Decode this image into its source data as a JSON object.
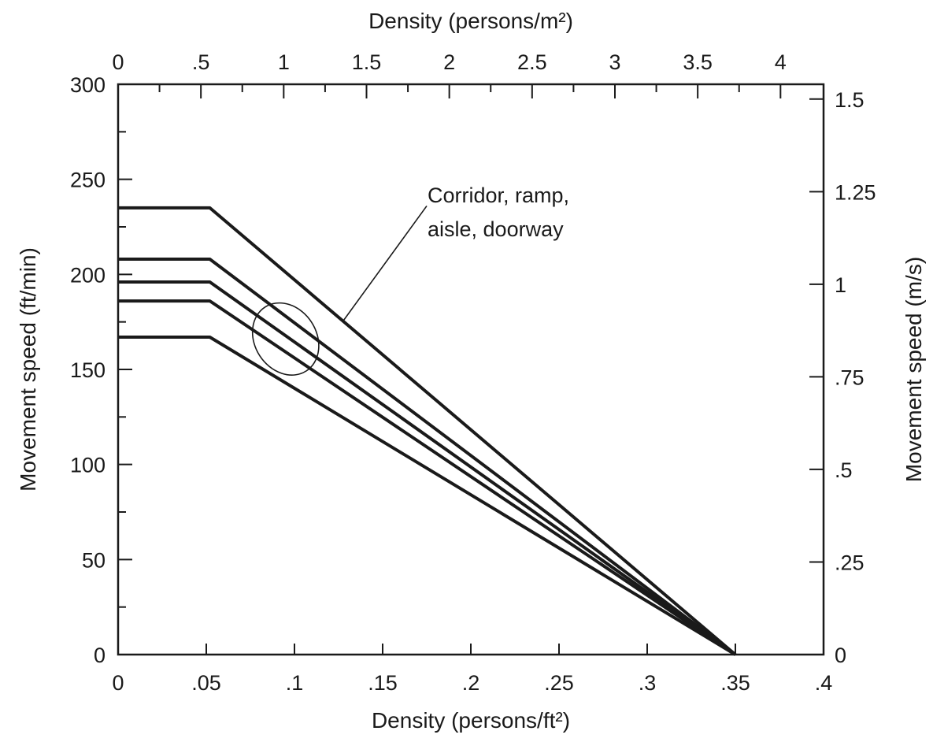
{
  "chart_data": {
    "type": "line",
    "title": "",
    "xlabel_bottom": "Density (persons/ft²)",
    "xlabel_top": "Density (persons/m²)",
    "ylabel_left": "Movement speed (ft/min)",
    "ylabel_right": "Movement speed (m/s)",
    "xlim": [
      0,
      0.4
    ],
    "ylim": [
      0,
      300
    ],
    "grid": false,
    "legend": "none",
    "bottom_ticks": [
      {
        "value": 0,
        "label": "0"
      },
      {
        "value": 0.05,
        "label": ".05"
      },
      {
        "value": 0.1,
        "label": ".1"
      },
      {
        "value": 0.15,
        "label": ".15"
      },
      {
        "value": 0.2,
        "label": ".2"
      },
      {
        "value": 0.25,
        "label": ".25"
      },
      {
        "value": 0.3,
        "label": ".3"
      },
      {
        "value": 0.35,
        "label": ".35"
      },
      {
        "value": 0.4,
        "label": ".4"
      }
    ],
    "top_ticks": [
      {
        "value": 0,
        "label": "0"
      },
      {
        "value": 0.5,
        "label": ".5"
      },
      {
        "value": 1,
        "label": "1"
      },
      {
        "value": 1.5,
        "label": "1.5"
      },
      {
        "value": 2,
        "label": "2"
      },
      {
        "value": 2.5,
        "label": "2.5"
      },
      {
        "value": 3,
        "label": "3"
      },
      {
        "value": 3.5,
        "label": "3.5"
      },
      {
        "value": 4,
        "label": "4"
      }
    ],
    "left_ticks": [
      {
        "value": 0,
        "label": "0"
      },
      {
        "value": 50,
        "label": "50"
      },
      {
        "value": 100,
        "label": "100"
      },
      {
        "value": 150,
        "label": "150"
      },
      {
        "value": 200,
        "label": "200"
      },
      {
        "value": 250,
        "label": "250"
      },
      {
        "value": 300,
        "label": "300"
      }
    ],
    "right_ticks": [
      {
        "value": 0,
        "label": "0"
      },
      {
        "value": 0.25,
        "label": ".25"
      },
      {
        "value": 0.5,
        "label": ".5"
      },
      {
        "value": 0.75,
        "label": ".75"
      },
      {
        "value": 1,
        "label": "1"
      },
      {
        "value": 1.25,
        "label": "1.25"
      },
      {
        "value": 1.5,
        "label": "1.5"
      }
    ],
    "series": [
      {
        "points": [
          [
            0,
            235
          ],
          [
            0.052,
            235
          ],
          [
            0.35,
            0
          ]
        ]
      },
      {
        "points": [
          [
            0,
            208
          ],
          [
            0.052,
            208
          ],
          [
            0.35,
            0
          ]
        ]
      },
      {
        "points": [
          [
            0,
            196
          ],
          [
            0.052,
            196
          ],
          [
            0.35,
            0
          ]
        ]
      },
      {
        "points": [
          [
            0,
            186
          ],
          [
            0.052,
            186
          ],
          [
            0.35,
            0
          ]
        ]
      },
      {
        "points": [
          [
            0,
            167
          ],
          [
            0.052,
            167
          ],
          [
            0.35,
            0
          ]
        ]
      }
    ],
    "annotation": {
      "lines": [
        "Corridor, ramp,",
        "aisle, doorway"
      ],
      "leader_from": [
        0.175,
        236
      ],
      "leader_to": [
        0.128,
        176
      ],
      "ellipse_center": [
        0.095,
        166
      ],
      "ellipse_radius": [
        0.0175,
        20
      ],
      "ellipse_tilt_deg": -33
    }
  }
}
